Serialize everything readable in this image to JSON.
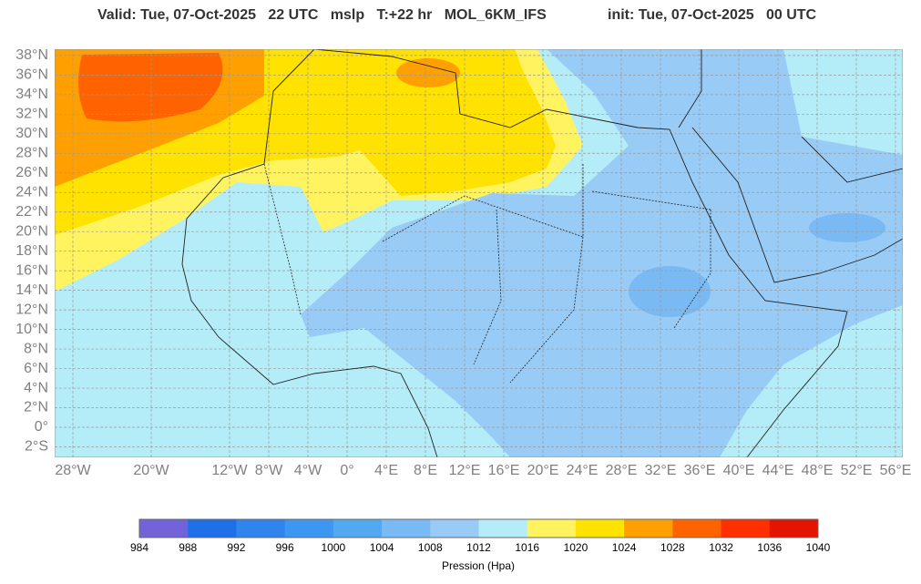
{
  "header": {
    "valid": "Valid: Tue, 07-Oct-2025   22 UTC   mslp   T:+22 hr   MOL_6KM_IFS",
    "init": "init: Tue, 07-Oct-2025   00 UTC"
  },
  "map": {
    "lat_ticks": [
      {
        "value": 38,
        "label": "38°N"
      },
      {
        "value": 36,
        "label": "36°N"
      },
      {
        "value": 34,
        "label": "34°N"
      },
      {
        "value": 32,
        "label": "32°N"
      },
      {
        "value": 30,
        "label": "30°N"
      },
      {
        "value": 28,
        "label": "28°N"
      },
      {
        "value": 26,
        "label": "26°N"
      },
      {
        "value": 24,
        "label": "24°N"
      },
      {
        "value": 22,
        "label": "22°N"
      },
      {
        "value": 20,
        "label": "20°N"
      },
      {
        "value": 18,
        "label": "18°N"
      },
      {
        "value": 16,
        "label": "16°N"
      },
      {
        "value": 14,
        "label": "14°N"
      },
      {
        "value": 12,
        "label": "12°N"
      },
      {
        "value": 10,
        "label": "10°N"
      },
      {
        "value": 8,
        "label": "8°N"
      },
      {
        "value": 6,
        "label": "6°N"
      },
      {
        "value": 4,
        "label": "4°N"
      },
      {
        "value": 2,
        "label": "2°N"
      },
      {
        "value": 0,
        "label": "0°"
      },
      {
        "value": -2,
        "label": "2°S"
      }
    ],
    "lon_ticks": [
      {
        "value": -28,
        "label": "28°W"
      },
      {
        "value": -20,
        "label": "20°W"
      },
      {
        "value": -12,
        "label": "12°W"
      },
      {
        "value": -8,
        "label": "8°W"
      },
      {
        "value": -4,
        "label": "4°W"
      },
      {
        "value": 0,
        "label": "0°"
      },
      {
        "value": 4,
        "label": "4°E"
      },
      {
        "value": 8,
        "label": "8°E"
      },
      {
        "value": 12,
        "label": "12°E"
      },
      {
        "value": 16,
        "label": "16°E"
      },
      {
        "value": 20,
        "label": "20°E"
      },
      {
        "value": 24,
        "label": "24°E"
      },
      {
        "value": 28,
        "label": "28°E"
      },
      {
        "value": 32,
        "label": "32°E"
      },
      {
        "value": 36,
        "label": "36°E"
      },
      {
        "value": 40,
        "label": "40°E"
      },
      {
        "value": 44,
        "label": "44°E"
      },
      {
        "value": 48,
        "label": "48°E"
      },
      {
        "value": 52,
        "label": "52°E"
      },
      {
        "value": 56,
        "label": "56°E"
      }
    ]
  },
  "colorbar": {
    "levels": [
      984,
      988,
      992,
      996,
      1000,
      1004,
      1008,
      1012,
      1016,
      1020,
      1024,
      1028,
      1032,
      1036,
      1040
    ],
    "colors": [
      "#7263d9",
      "#1e6fe8",
      "#2f85ec",
      "#3d97f0",
      "#53a9f1",
      "#79b9f4",
      "#98cbf6",
      "#b4edf8",
      "#fff460",
      "#ffe200",
      "#ffa000",
      "#ff6300",
      "#ff2f00",
      "#e31500"
    ],
    "label": "Pression (Hpa)"
  }
}
